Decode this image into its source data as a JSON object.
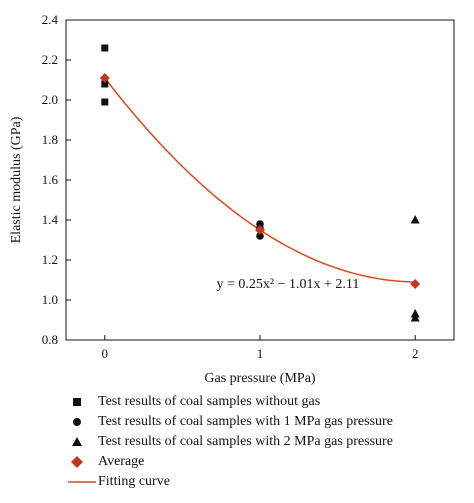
{
  "chart_data": {
    "type": "scatter",
    "xlabel": "Gas pressure (MPa)",
    "ylabel": "Elastic modulus (GPa)",
    "xlim": [
      -0.25,
      2.25
    ],
    "ylim": [
      0.8,
      2.4
    ],
    "xticks": [
      0,
      1,
      2
    ],
    "xtick_labels": [
      "0",
      "1",
      "2"
    ],
    "yticks": [
      0.8,
      1.0,
      1.2,
      1.4,
      1.6,
      1.8,
      2.0,
      2.2,
      2.4
    ],
    "ytick_labels": [
      "0.8",
      "1.0",
      "1.2",
      "1.4",
      "1.6",
      "1.8",
      "2.0",
      "2.2",
      "2.4"
    ],
    "grid": false,
    "legend_position": "bottom",
    "series": [
      {
        "name": "Test results of coal samples without gas",
        "marker": "square",
        "color": "#111111",
        "points": [
          [
            0,
            2.26
          ],
          [
            0,
            2.08
          ],
          [
            0,
            1.99
          ]
        ]
      },
      {
        "name": "Test results of coal samples with 1 MPa gas pressure",
        "marker": "circle",
        "color": "#111111",
        "points": [
          [
            1,
            1.38
          ],
          [
            1,
            1.36
          ],
          [
            1,
            1.32
          ]
        ]
      },
      {
        "name": "Test results of coal samples with 2 MPa gas pressure",
        "marker": "triangle",
        "color": "#111111",
        "points": [
          [
            2,
            1.4
          ],
          [
            2,
            0.93
          ],
          [
            2,
            0.91
          ]
        ]
      },
      {
        "name": "Average",
        "marker": "diamond",
        "color": "#c0391b",
        "points": [
          [
            0,
            2.11
          ],
          [
            1,
            1.35
          ],
          [
            2,
            1.08
          ]
        ]
      },
      {
        "name": "Fitting curve",
        "marker": "line",
        "color": "#d44a1e",
        "fit": {
          "a": 0.25,
          "b": -1.01,
          "c": 2.11,
          "x_range": [
            0,
            2
          ]
        }
      }
    ],
    "annotations": [
      {
        "text": "y = 0.25x² − 1.01x + 2.11",
        "x": 0.72,
        "y": 1.06
      }
    ]
  }
}
